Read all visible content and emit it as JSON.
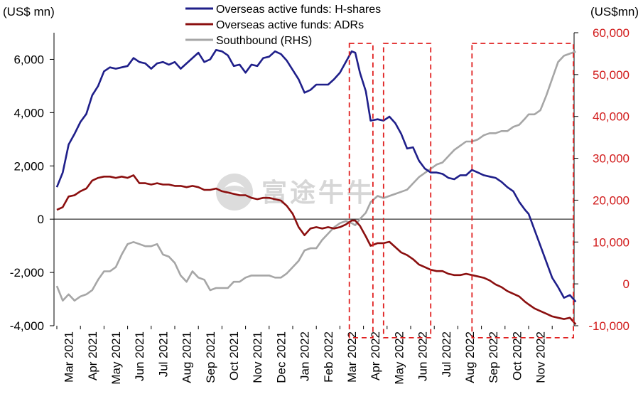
{
  "colors": {
    "h_shares": "#1f1f8a",
    "adrs": "#8b0f0f",
    "southbound": "#a6a6a6",
    "right_axis_text": "#d11a1a",
    "highlight_box": "#e02020",
    "axis": "#000000",
    "watermark": "#d6d6d6"
  },
  "watermark": {
    "text": "富途牛牛",
    "icon": "futu-logo-icon"
  },
  "chart_data": {
    "type": "line",
    "left_axis": {
      "label": "(US$ mn)",
      "ylim": [
        -4000,
        7000
      ],
      "ticks": [
        6000,
        4000,
        2000,
        0,
        -2000,
        -4000
      ],
      "tick_labels": [
        "6,000",
        "4,000",
        "2,000",
        "0",
        "-2,000",
        "-4,000"
      ]
    },
    "right_axis": {
      "label": "(US$mn)",
      "ylim": [
        -10000,
        60000
      ],
      "ticks": [
        60000,
        50000,
        40000,
        30000,
        20000,
        10000,
        0,
        -10000
      ],
      "tick_labels": [
        "60,000",
        "50,000",
        "40,000",
        "30,000",
        "20,000",
        "10,000",
        "0",
        "-10,000"
      ]
    },
    "x_labels": [
      "Mar 2021",
      "Apr 2021",
      "May 2021",
      "Jun 2021",
      "Jul 2021",
      "Aug 2021",
      "Sep 2021",
      "Oct 2021",
      "Nov 2021",
      "Dec 2021",
      "Jan 2022",
      "Feb 2022",
      "Mar 2022",
      "Apr 2022",
      "May 2022",
      "Jun 2022",
      "Jul 2022",
      "Aug 2022",
      "Sep 2022",
      "Oct 2022",
      "Nov 2022"
    ],
    "x_range": [
      0,
      21
    ],
    "grid": false,
    "legend": "top-center",
    "series": [
      {
        "name": "Overseas active funds: H-shares",
        "axis": "left",
        "points": [
          [
            0.0,
            1200
          ],
          [
            0.25,
            1750
          ],
          [
            0.5,
            2800
          ],
          [
            0.75,
            3200
          ],
          [
            1.0,
            3650
          ],
          [
            1.25,
            3950
          ],
          [
            1.5,
            4650
          ],
          [
            1.75,
            5000
          ],
          [
            2.0,
            5550
          ],
          [
            2.25,
            5700
          ],
          [
            2.5,
            5650
          ],
          [
            2.75,
            5700
          ],
          [
            3.0,
            5750
          ],
          [
            3.25,
            6050
          ],
          [
            3.5,
            5900
          ],
          [
            3.75,
            5850
          ],
          [
            4.0,
            5650
          ],
          [
            4.25,
            5850
          ],
          [
            4.5,
            5900
          ],
          [
            4.75,
            5800
          ],
          [
            5.0,
            5900
          ],
          [
            5.25,
            5650
          ],
          [
            5.5,
            5850
          ],
          [
            5.75,
            6050
          ],
          [
            6.0,
            6250
          ],
          [
            6.25,
            5900
          ],
          [
            6.5,
            6000
          ],
          [
            6.75,
            6350
          ],
          [
            7.0,
            6300
          ],
          [
            7.25,
            6150
          ],
          [
            7.5,
            5750
          ],
          [
            7.75,
            5800
          ],
          [
            8.0,
            5500
          ],
          [
            8.25,
            5800
          ],
          [
            8.5,
            5750
          ],
          [
            8.75,
            6050
          ],
          [
            9.0,
            6100
          ],
          [
            9.25,
            6300
          ],
          [
            9.5,
            6200
          ],
          [
            9.75,
            5950
          ],
          [
            10.0,
            5600
          ],
          [
            10.25,
            5250
          ],
          [
            10.5,
            4750
          ],
          [
            10.75,
            4850
          ],
          [
            11.0,
            5050
          ],
          [
            11.25,
            5050
          ],
          [
            11.5,
            5050
          ],
          [
            11.75,
            5250
          ],
          [
            12.0,
            5500
          ],
          [
            12.25,
            5900
          ],
          [
            12.5,
            6300
          ],
          [
            12.65,
            6250
          ],
          [
            12.85,
            5500
          ],
          [
            13.1,
            4800
          ],
          [
            13.3,
            3700
          ],
          [
            13.6,
            3750
          ],
          [
            13.85,
            3700
          ],
          [
            14.1,
            3850
          ],
          [
            14.35,
            3600
          ],
          [
            14.6,
            3200
          ],
          [
            14.85,
            2650
          ],
          [
            15.1,
            2700
          ],
          [
            15.35,
            2200
          ],
          [
            15.6,
            1900
          ],
          [
            15.85,
            1750
          ],
          [
            16.1,
            1750
          ],
          [
            16.35,
            1700
          ],
          [
            16.6,
            1550
          ],
          [
            16.85,
            1500
          ],
          [
            17.1,
            1650
          ],
          [
            17.35,
            1650
          ],
          [
            17.6,
            1850
          ],
          [
            17.85,
            1750
          ],
          [
            18.1,
            1650
          ],
          [
            18.35,
            1600
          ],
          [
            18.6,
            1550
          ],
          [
            18.85,
            1400
          ],
          [
            19.1,
            1200
          ],
          [
            19.35,
            1050
          ],
          [
            19.6,
            650
          ],
          [
            19.85,
            350
          ],
          [
            20.0,
            200
          ],
          [
            20.25,
            -400
          ],
          [
            20.5,
            -1000
          ],
          [
            20.75,
            -1600
          ],
          [
            21.0,
            -2200
          ],
          [
            21.25,
            -2550
          ],
          [
            21.5,
            -2950
          ],
          [
            21.75,
            -2850
          ],
          [
            22.0,
            -3100
          ]
        ]
      },
      {
        "name": "Overseas active funds: ADRs",
        "axis": "left",
        "points": [
          [
            0.0,
            350
          ],
          [
            0.25,
            450
          ],
          [
            0.5,
            850
          ],
          [
            0.75,
            900
          ],
          [
            1.0,
            1050
          ],
          [
            1.25,
            1150
          ],
          [
            1.5,
            1450
          ],
          [
            1.75,
            1550
          ],
          [
            2.0,
            1600
          ],
          [
            2.25,
            1600
          ],
          [
            2.5,
            1550
          ],
          [
            2.75,
            1600
          ],
          [
            3.0,
            1550
          ],
          [
            3.25,
            1650
          ],
          [
            3.5,
            1350
          ],
          [
            3.75,
            1350
          ],
          [
            4.0,
            1300
          ],
          [
            4.25,
            1350
          ],
          [
            4.5,
            1300
          ],
          [
            4.75,
            1300
          ],
          [
            5.0,
            1250
          ],
          [
            5.25,
            1250
          ],
          [
            5.5,
            1200
          ],
          [
            5.75,
            1250
          ],
          [
            6.0,
            1200
          ],
          [
            6.25,
            1100
          ],
          [
            6.5,
            1100
          ],
          [
            6.75,
            1150
          ],
          [
            7.0,
            1050
          ],
          [
            7.25,
            1000
          ],
          [
            7.5,
            950
          ],
          [
            7.75,
            900
          ],
          [
            8.0,
            900
          ],
          [
            8.25,
            800
          ],
          [
            8.5,
            750
          ],
          [
            8.75,
            800
          ],
          [
            9.0,
            800
          ],
          [
            9.25,
            750
          ],
          [
            9.5,
            700
          ],
          [
            9.75,
            500
          ],
          [
            10.0,
            200
          ],
          [
            10.25,
            -300
          ],
          [
            10.5,
            -600
          ],
          [
            10.75,
            -350
          ],
          [
            11.0,
            -300
          ],
          [
            11.25,
            -350
          ],
          [
            11.5,
            -300
          ],
          [
            11.75,
            -350
          ],
          [
            12.0,
            -300
          ],
          [
            12.25,
            -200
          ],
          [
            12.5,
            -50
          ],
          [
            12.65,
            -50
          ],
          [
            12.85,
            -250
          ],
          [
            13.1,
            -650
          ],
          [
            13.3,
            -1000
          ],
          [
            13.6,
            -900
          ],
          [
            13.85,
            -900
          ],
          [
            14.1,
            -850
          ],
          [
            14.35,
            -1050
          ],
          [
            14.6,
            -1250
          ],
          [
            14.85,
            -1350
          ],
          [
            15.1,
            -1500
          ],
          [
            15.35,
            -1700
          ],
          [
            15.6,
            -1800
          ],
          [
            15.85,
            -1900
          ],
          [
            16.1,
            -1950
          ],
          [
            16.35,
            -1950
          ],
          [
            16.6,
            -2050
          ],
          [
            16.85,
            -2100
          ],
          [
            17.1,
            -2100
          ],
          [
            17.35,
            -2050
          ],
          [
            17.6,
            -2100
          ],
          [
            17.85,
            -2150
          ],
          [
            18.1,
            -2200
          ],
          [
            18.35,
            -2300
          ],
          [
            18.6,
            -2450
          ],
          [
            18.85,
            -2550
          ],
          [
            19.1,
            -2700
          ],
          [
            19.35,
            -2800
          ],
          [
            19.6,
            -2900
          ],
          [
            19.85,
            -3100
          ],
          [
            20.0,
            -3200
          ],
          [
            20.25,
            -3350
          ],
          [
            20.5,
            -3450
          ],
          [
            20.75,
            -3550
          ],
          [
            21.0,
            -3650
          ],
          [
            21.25,
            -3700
          ],
          [
            21.5,
            -3750
          ],
          [
            21.75,
            -3700
          ],
          [
            22.0,
            -3950
          ]
        ]
      },
      {
        "name": "Southbound (RHS)",
        "axis": "right",
        "points": [
          [
            0.0,
            -500
          ],
          [
            0.25,
            -4000
          ],
          [
            0.5,
            -2500
          ],
          [
            0.75,
            -4000
          ],
          [
            1.0,
            -3000
          ],
          [
            1.25,
            -2500
          ],
          [
            1.5,
            -1500
          ],
          [
            1.75,
            1000
          ],
          [
            2.0,
            3000
          ],
          [
            2.25,
            3000
          ],
          [
            2.5,
            4000
          ],
          [
            2.75,
            7000
          ],
          [
            3.0,
            9500
          ],
          [
            3.25,
            10000
          ],
          [
            3.5,
            9500
          ],
          [
            3.75,
            9000
          ],
          [
            4.0,
            9000
          ],
          [
            4.25,
            9500
          ],
          [
            4.5,
            7000
          ],
          [
            4.75,
            6500
          ],
          [
            5.0,
            5000
          ],
          [
            5.25,
            2000
          ],
          [
            5.5,
            500
          ],
          [
            5.75,
            3000
          ],
          [
            6.0,
            1500
          ],
          [
            6.25,
            1000
          ],
          [
            6.5,
            -1500
          ],
          [
            6.75,
            -1000
          ],
          [
            7.0,
            -1000
          ],
          [
            7.25,
            -1000
          ],
          [
            7.5,
            500
          ],
          [
            7.75,
            500
          ],
          [
            8.0,
            1500
          ],
          [
            8.25,
            2000
          ],
          [
            8.5,
            2000
          ],
          [
            8.75,
            2000
          ],
          [
            9.0,
            2000
          ],
          [
            9.25,
            1500
          ],
          [
            9.5,
            1500
          ],
          [
            9.75,
            2500
          ],
          [
            10.0,
            4000
          ],
          [
            10.25,
            5500
          ],
          [
            10.5,
            8000
          ],
          [
            10.75,
            8500
          ],
          [
            11.0,
            8500
          ],
          [
            11.25,
            10500
          ],
          [
            11.5,
            12000
          ],
          [
            11.75,
            13500
          ],
          [
            12.0,
            14500
          ],
          [
            12.25,
            15000
          ],
          [
            12.5,
            14500
          ],
          [
            12.65,
            14000
          ],
          [
            12.85,
            15500
          ],
          [
            13.1,
            17000
          ],
          [
            13.3,
            19500
          ],
          [
            13.6,
            21000
          ],
          [
            13.85,
            20500
          ],
          [
            14.1,
            21000
          ],
          [
            14.35,
            21500
          ],
          [
            14.6,
            22000
          ],
          [
            14.85,
            22500
          ],
          [
            15.1,
            24000
          ],
          [
            15.35,
            25500
          ],
          [
            15.6,
            26500
          ],
          [
            15.85,
            27500
          ],
          [
            16.1,
            28500
          ],
          [
            16.35,
            29000
          ],
          [
            16.6,
            30500
          ],
          [
            16.85,
            32000
          ],
          [
            17.1,
            33000
          ],
          [
            17.35,
            34000
          ],
          [
            17.6,
            34000
          ],
          [
            17.85,
            34500
          ],
          [
            18.1,
            35500
          ],
          [
            18.35,
            36000
          ],
          [
            18.6,
            36000
          ],
          [
            18.85,
            36500
          ],
          [
            19.1,
            36500
          ],
          [
            19.35,
            37500
          ],
          [
            19.6,
            38000
          ],
          [
            19.85,
            39500
          ],
          [
            20.0,
            40500
          ],
          [
            20.25,
            40500
          ],
          [
            20.5,
            41500
          ],
          [
            20.75,
            45000
          ],
          [
            21.0,
            49000
          ],
          [
            21.25,
            53000
          ],
          [
            21.5,
            54500
          ],
          [
            21.75,
            55000
          ],
          [
            22.0,
            55500
          ]
        ]
      }
    ],
    "highlight_boxes": [
      {
        "x_from": 12.4,
        "x_to": 13.4,
        "y_from": 6600,
        "y_to": -4450
      },
      {
        "x_from": 13.85,
        "x_to": 15.85,
        "y_from": 6600,
        "y_to": -4450
      },
      {
        "x_from": 17.6,
        "x_to": 21.9,
        "y_from": 6600,
        "y_to": -4450
      }
    ]
  }
}
